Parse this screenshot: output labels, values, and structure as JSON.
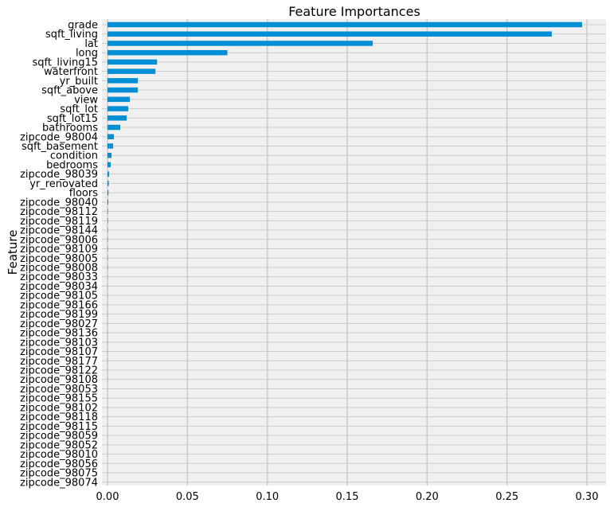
{
  "chart_data": {
    "type": "bar",
    "orientation": "horizontal",
    "title": "Feature Importances",
    "xlabel": "",
    "ylabel": "Feature",
    "xlim": [
      0,
      0.31
    ],
    "xticks": [
      0.0,
      0.05,
      0.1,
      0.15,
      0.2,
      0.25,
      0.3
    ],
    "xtick_labels": [
      "0.00",
      "0.05",
      "0.10",
      "0.15",
      "0.20",
      "0.25",
      "0.30"
    ],
    "grid": true,
    "bar_color": "#008fd5",
    "background_color": "#f0f0f0",
    "grid_color": "#cbcbcb",
    "categories": [
      "grade",
      "sqft_living",
      "lat",
      "long",
      "sqft_living15",
      "waterfront",
      "yr_built",
      "sqft_above",
      "view",
      "sqft_lot",
      "sqft_lot15",
      "bathrooms",
      "zipcode_98004",
      "sqft_basement",
      "condition",
      "bedrooms",
      "zipcode_98039",
      "yr_renovated",
      "floors",
      "zipcode_98040",
      "zipcode_98112",
      "zipcode_98119",
      "zipcode_98144",
      "zipcode_98006",
      "zipcode_98109",
      "zipcode_98005",
      "zipcode_98008",
      "zipcode_98033",
      "zipcode_98034",
      "zipcode_98105",
      "zipcode_98166",
      "zipcode_98199",
      "zipcode_98027",
      "zipcode_98136",
      "zipcode_98103",
      "zipcode_98107",
      "zipcode_98177",
      "zipcode_98122",
      "zipcode_98108",
      "zipcode_98053",
      "zipcode_98155",
      "zipcode_98102",
      "zipcode_98118",
      "zipcode_98115",
      "zipcode_98059",
      "zipcode_98052",
      "zipcode_98010",
      "zipcode_98056",
      "zipcode_98075",
      "zipcode_98074"
    ],
    "values": [
      0.297,
      0.278,
      0.166,
      0.075,
      0.031,
      0.03,
      0.019,
      0.019,
      0.014,
      0.013,
      0.012,
      0.008,
      0.004,
      0.0035,
      0.0025,
      0.002,
      0.001,
      0.0008,
      0.0006,
      0.0005,
      0.0003,
      0.0003,
      0.0002,
      0.0002,
      0.0002,
      0.0002,
      0.0002,
      0.0001,
      0.0001,
      0.0001,
      0.0001,
      0.0001,
      0.0001,
      0.0001,
      0.0001,
      0.0001,
      0.0001,
      0.0001,
      0.0001,
      5e-05,
      5e-05,
      5e-05,
      5e-05,
      5e-05,
      5e-05,
      5e-05,
      5e-05,
      3e-05,
      3e-05,
      2e-05
    ]
  }
}
